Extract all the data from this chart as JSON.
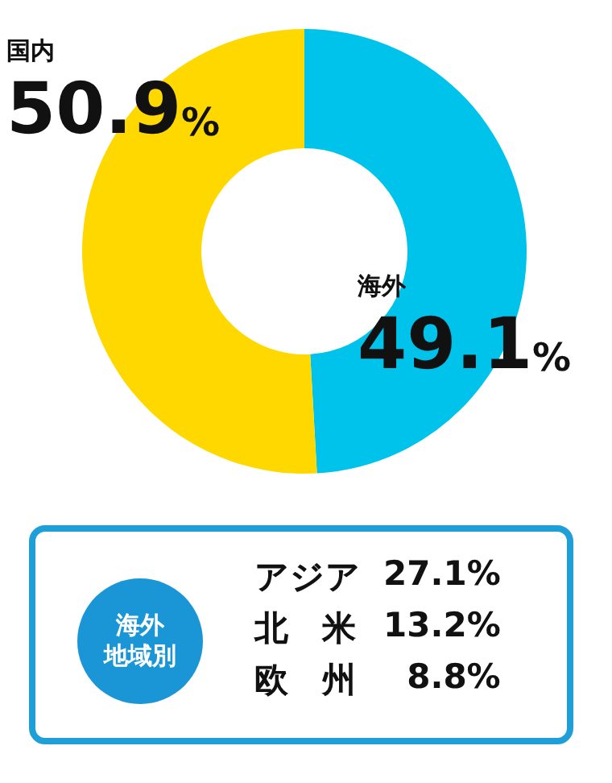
{
  "chart_data": [
    {
      "type": "donut",
      "categories": [
        "海外",
        "国内"
      ],
      "values": [
        49.1,
        50.9
      ],
      "colors": [
        "#00c3ec",
        "#ffd800"
      ],
      "value_labels": [
        "49.1%",
        "50.9%"
      ],
      "legend": false
    },
    {
      "type": "other",
      "title": "海外地域別",
      "annotations": [
        "アジア",
        "27.1%",
        "北　米",
        "13.2%",
        "欧　州",
        "8.8%"
      ]
    }
  ]
}
